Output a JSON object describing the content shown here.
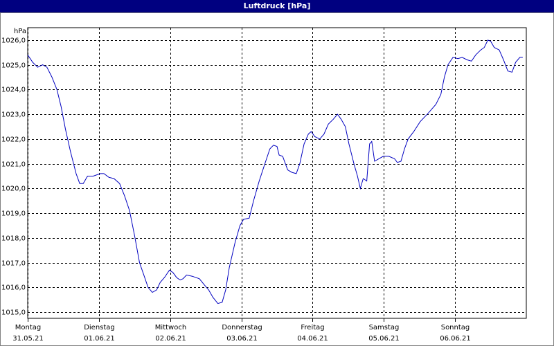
{
  "chart_data": {
    "type": "line",
    "title": "Luftdruck [hPa]",
    "y_unit": "hPa",
    "x": [
      0,
      0.07,
      0.14,
      0.21,
      0.27,
      0.34,
      0.41,
      0.47,
      0.53,
      0.6,
      0.68,
      0.73,
      0.78,
      0.84,
      0.92,
      1.02,
      1.07,
      1.14,
      1.21,
      1.29,
      1.36,
      1.43,
      1.5,
      1.57,
      1.63,
      1.69,
      1.75,
      1.81,
      1.86,
      1.92,
      1.99,
      2.04,
      2.09,
      2.14,
      2.18,
      2.23,
      2.31,
      2.41,
      2.48,
      2.54,
      2.6,
      2.67,
      2.73,
      2.78,
      2.83,
      2.91,
      2.98,
      3.03,
      3.11,
      3.17,
      3.25,
      3.33,
      3.4,
      3.45,
      3.5,
      3.53,
      3.58,
      3.65,
      3.71,
      3.77,
      3.82,
      3.88,
      3.94,
      3.98,
      4.03,
      4.1,
      4.16,
      4.22,
      4.29,
      4.35,
      4.4,
      4.46,
      4.51,
      4.58,
      4.63,
      4.67,
      4.71,
      4.76,
      4.8,
      4.83,
      4.87,
      4.93,
      4.99,
      5.07,
      5.15,
      5.19,
      5.24,
      5.29,
      5.34,
      5.42,
      5.51,
      5.61,
      5.73,
      5.8,
      5.85,
      5.9,
      5.97,
      6.04,
      6.1,
      6.17,
      6.23,
      6.29,
      6.36,
      6.41,
      6.46,
      6.5,
      6.55,
      6.62,
      6.68,
      6.74,
      6.8,
      6.85,
      6.91,
      6.95
    ],
    "series": [
      {
        "name": "Luftdruck",
        "color": "#0000c0",
        "values": [
          1025.4,
          1025.1,
          1024.9,
          1025.0,
          1024.9,
          1024.5,
          1024.0,
          1023.3,
          1022.4,
          1021.5,
          1020.6,
          1020.2,
          1020.2,
          1020.5,
          1020.5,
          1020.6,
          1020.6,
          1020.45,
          1020.4,
          1020.2,
          1019.7,
          1019.1,
          1018.1,
          1017.0,
          1016.5,
          1016.0,
          1015.8,
          1015.9,
          1016.2,
          1016.4,
          1016.7,
          1016.6,
          1016.4,
          1016.3,
          1016.35,
          1016.5,
          1016.45,
          1016.35,
          1016.1,
          1015.9,
          1015.6,
          1015.35,
          1015.4,
          1015.9,
          1016.8,
          1017.8,
          1018.5,
          1018.75,
          1018.8,
          1019.5,
          1020.3,
          1021.0,
          1021.6,
          1021.75,
          1021.7,
          1021.35,
          1021.3,
          1020.75,
          1020.65,
          1020.6,
          1021.0,
          1021.8,
          1022.2,
          1022.3,
          1022.1,
          1022.0,
          1022.2,
          1022.6,
          1022.8,
          1023.0,
          1022.8,
          1022.5,
          1021.8,
          1021.0,
          1020.5,
          1020.0,
          1020.4,
          1020.3,
          1021.8,
          1021.9,
          1021.1,
          1021.2,
          1021.3,
          1021.3,
          1021.2,
          1021.05,
          1021.1,
          1021.6,
          1022.0,
          1022.3,
          1022.7,
          1023.0,
          1023.4,
          1023.8,
          1024.5,
          1025.0,
          1025.3,
          1025.25,
          1025.3,
          1025.2,
          1025.15,
          1025.4,
          1025.6,
          1025.7,
          1026.0,
          1025.95,
          1025.7,
          1025.6,
          1025.2,
          1024.75,
          1024.7,
          1025.1,
          1025.3,
          1025.3
        ]
      }
    ],
    "xlim": [
      0,
      7
    ],
    "xticks": [
      {
        "value": 0,
        "label": "Montag"
      },
      {
        "value": 1,
        "label": "Dienstag"
      },
      {
        "value": 2,
        "label": "Mittwoch"
      },
      {
        "value": 3,
        "label": "Donnerstag"
      },
      {
        "value": 4,
        "label": "Freitag"
      },
      {
        "value": 5,
        "label": "Samstag"
      },
      {
        "value": 6,
        "label": "Sonntag"
      }
    ],
    "xtick_dates": [
      "31.05.21",
      "01.06.21",
      "02.06.21",
      "03.06.21",
      "04.06.21",
      "05.06.21",
      "06.06.21"
    ],
    "ylim": [
      1014.75,
      1026.5
    ],
    "yticks": [
      {
        "value": 1015,
        "label": "1015,0"
      },
      {
        "value": 1016,
        "label": "1016,0"
      },
      {
        "value": 1017,
        "label": "1017,0"
      },
      {
        "value": 1018,
        "label": "1018,0"
      },
      {
        "value": 1019,
        "label": "1019,0"
      },
      {
        "value": 1020,
        "label": "1020,0"
      },
      {
        "value": 1021,
        "label": "1021,0"
      },
      {
        "value": 1022,
        "label": "1022,0"
      },
      {
        "value": 1023,
        "label": "1023,0"
      },
      {
        "value": 1024,
        "label": "1024,0"
      },
      {
        "value": 1025,
        "label": "1025,0"
      },
      {
        "value": 1026,
        "label": "1026,0"
      }
    ],
    "grid": true
  }
}
